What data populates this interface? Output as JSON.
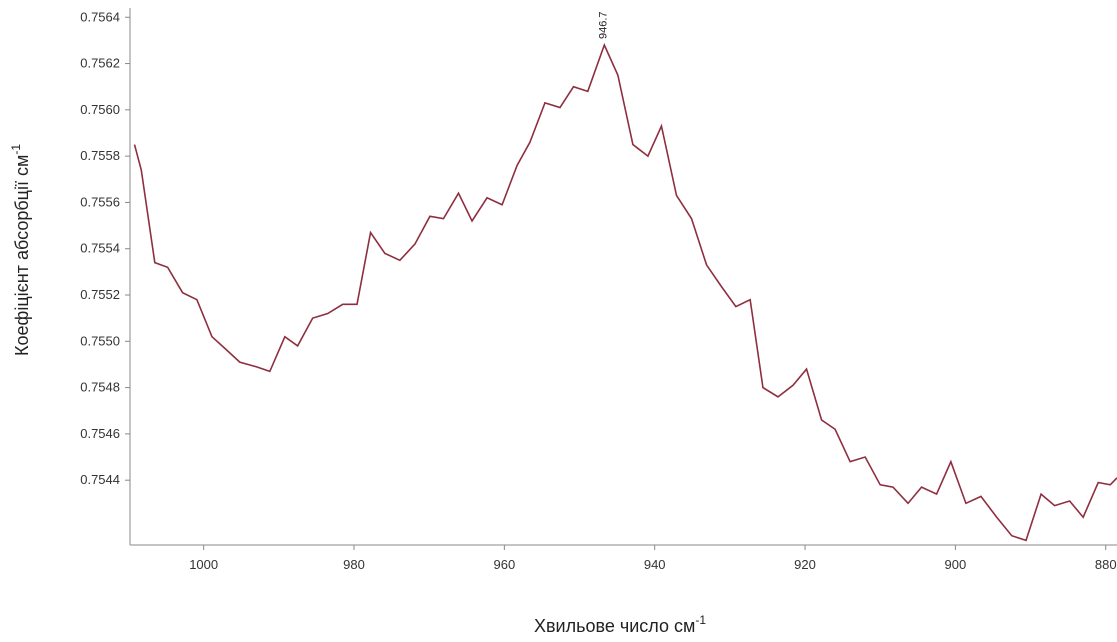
{
  "chart_data": {
    "type": "line",
    "x_label": "Хвильове число см",
    "x_label_sup": "-1",
    "y_label": "Коефіцієнт абсорбції см",
    "y_label_sup": "-1",
    "xlim": [
      1009.8,
      878.5
    ],
    "ylim": [
      0.75412,
      0.75644
    ],
    "xticks": [
      1000,
      980,
      960,
      940,
      920,
      900,
      880
    ],
    "yticks": [
      0.7544,
      0.7546,
      0.7548,
      {
        "value": 0.755,
        "label": "0.7550"
      },
      0.7552,
      0.7554,
      0.7556,
      0.7558,
      {
        "value": 0.756,
        "label": "0.7560"
      },
      0.7562,
      0.7564
    ],
    "series": [
      {
        "color": "#8e2f3f",
        "x": [
          1009.2,
          1008.3,
          1006.5,
          1004.8,
          1002.8,
          1000.9,
          998.9,
          997.2,
          995.2,
          993.0,
          991.2,
          989.2,
          987.5,
          985.5,
          983.5,
          981.5,
          979.6,
          977.8,
          975.9,
          973.9,
          971.9,
          969.9,
          968.1,
          966.1,
          964.3,
          962.3,
          960.3,
          958.3,
          956.6,
          954.6,
          952.6,
          950.8,
          948.9,
          946.7,
          944.9,
          942.9,
          940.9,
          939.1,
          937.1,
          935.1,
          933.1,
          931.2,
          929.2,
          927.3,
          925.6,
          923.6,
          921.6,
          919.8,
          917.8,
          916.0,
          914.0,
          912.0,
          910.0,
          908.3,
          906.3,
          904.5,
          902.5,
          900.6,
          898.6,
          896.6,
          894.5,
          892.5,
          890.6,
          888.6,
          886.8,
          884.8,
          883.0,
          881.0,
          879.4,
          878.5
        ],
        "values": [
          0.75585,
          0.75574,
          0.75534,
          0.75532,
          0.75521,
          0.75518,
          0.75502,
          0.75497,
          0.75491,
          0.75489,
          0.75487,
          0.75502,
          0.75498,
          0.7551,
          0.75512,
          0.75516,
          0.75516,
          0.75547,
          0.75538,
          0.75535,
          0.75542,
          0.75554,
          0.75553,
          0.75564,
          0.75552,
          0.75562,
          0.75559,
          0.75576,
          0.75586,
          0.75603,
          0.75601,
          0.7561,
          0.75608,
          0.75628,
          0.75615,
          0.75585,
          0.7558,
          0.75593,
          0.75563,
          0.75553,
          0.75533,
          0.75524,
          0.75515,
          0.75518,
          0.7548,
          0.75476,
          0.75481,
          0.75488,
          0.75466,
          0.75462,
          0.75448,
          0.7545,
          0.75438,
          0.75437,
          0.7543,
          0.75437,
          0.75434,
          0.75448,
          0.7543,
          0.75433,
          0.75424,
          0.75416,
          0.75414,
          0.75434,
          0.75429,
          0.75431,
          0.75424,
          0.75439,
          0.75438,
          0.75441
        ]
      }
    ],
    "annotations": [
      {
        "text": "946.7",
        "x": 946.7,
        "y": 0.75628
      }
    ]
  }
}
